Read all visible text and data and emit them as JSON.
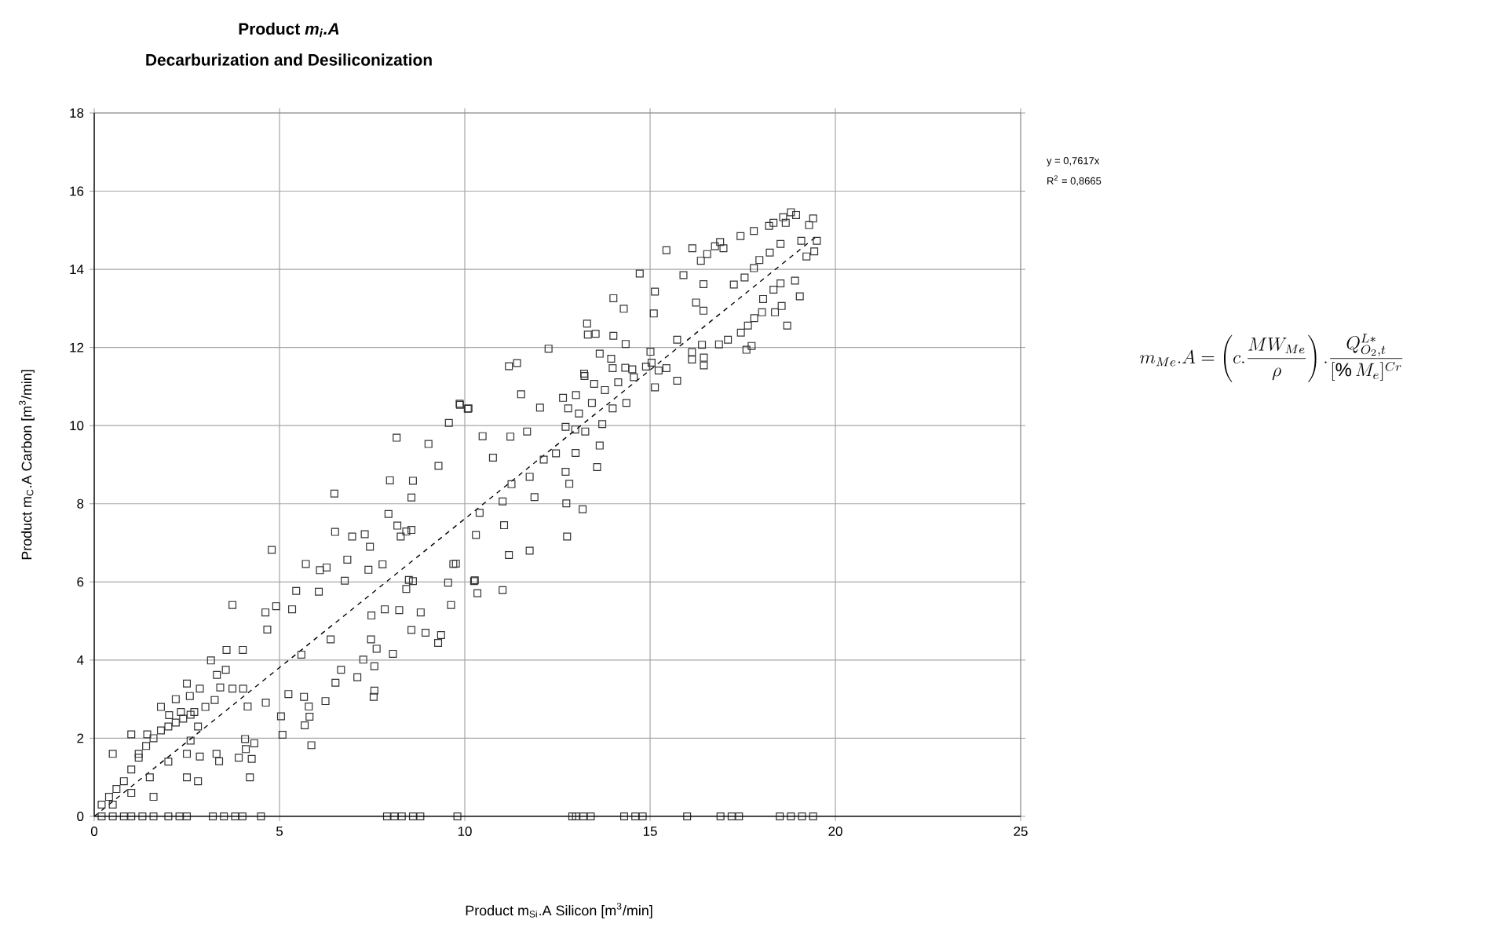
{
  "chart_data": {
    "type": "scatter",
    "title": "Product *m$_{i}$.A*",
    "subtitle": "Decarburization and Desiliconization",
    "xlabel": "Product m$_{Si}$.A Silicon [m$^{3}$/min]",
    "ylabel": "Product m$_{C}$.A Carbon [m$^{3}$/min]",
    "annotations": [
      "y = 0,7617x",
      "R$^{2}$ = 0,8665",
      "m_{Me}.A=\\left(c.\\frac{MW_{Me}}{\\rho}\\right).\\frac{Q_{O_2,t}^{L*}}{[\\%\\,M_e]^{Cr}}"
    ],
    "xlim": [
      0,
      25
    ],
    "ylim": [
      0,
      18
    ],
    "xticks": [
      0,
      5,
      10,
      15,
      20,
      25
    ],
    "yticks": [
      0,
      2,
      4,
      6,
      8,
      10,
      12,
      14,
      16,
      18
    ],
    "grid": true,
    "series": [
      {
        "color": "#333333",
        "marker": "square",
        "x": [
          0.2,
          0.5,
          0.8,
          1.0,
          1.3,
          1.6,
          2.0,
          2.3,
          2.5,
          3.2,
          3.5,
          3.8,
          4.0,
          4.5,
          7.9,
          8.1,
          8.3,
          8.6,
          8.8,
          9.8,
          12.9,
          13.0,
          13.2,
          13.4,
          14.3,
          14.6,
          14.8,
          16.0,
          16.9,
          17.2,
          17.4,
          18.5,
          18.8,
          19.1,
          19.4,
          0.2,
          0.4,
          0.6,
          0.8,
          1.0,
          1.2,
          1.4,
          1.6,
          1.8,
          2.0,
          2.2,
          2.4,
          2.6,
          0.5,
          1.0,
          1.5,
          2.0,
          2.5,
          0.5,
          1.0,
          1.8,
          2.2,
          2.5,
          3.4,
          3.0,
          2.8,
          3.3,
          2.5,
          1.6,
          2.8,
          3.9,
          4.2,
          9.86,
          10.1,
          9.57,
          8.16,
          9.02,
          9.29,
          7.98,
          8.6,
          8.56,
          6.48,
          7.94,
          8.18,
          8.27,
          8.42,
          8.56,
          6.5,
          6.96,
          7.3,
          7.44,
          4.79,
          6.83,
          7.78,
          5.71,
          6.27,
          6.09,
          7.4,
          6.76,
          6.06,
          5.45,
          9.55,
          9.69,
          10.25,
          8.49,
          8.6,
          8.42,
          3.73,
          4.62,
          4.91,
          5.34,
          4.67,
          6.38,
          5.59,
          7.48,
          7.84,
          8.23,
          8.81,
          8.56,
          8.94,
          9.36,
          9.28,
          9.63,
          7.47,
          7.62,
          8.06,
          7.26,
          7.56,
          7.1,
          6.66,
          6.51,
          7.56,
          7.54,
          3.57,
          4.01,
          3.15,
          3.55,
          3.31,
          2.85,
          2.58,
          2.02,
          3.25,
          3.73,
          4.02,
          4.14,
          4.63,
          5.24,
          5.66,
          5.79,
          5.81,
          6.24,
          5.04,
          5.08,
          5.68,
          5.86,
          4.07,
          4.32,
          4.09,
          4.25,
          1.43,
          1.2,
          3.37,
          2.85,
          2.6,
          2.7,
          2.34,
          15.44,
          16.14,
          16.37,
          16.54,
          16.75,
          16.89,
          16.98,
          17.44,
          17.8,
          18.21,
          18.33,
          18.59,
          18.8,
          18.66,
          18.94,
          19.4,
          19.29,
          19.5,
          19.43,
          19.22,
          19.08,
          14.72,
          15.9,
          16.44,
          17.26,
          17.55,
          17.8,
          17.95,
          18.23,
          18.52,
          15.13,
          14.01,
          14.29,
          15.1,
          16.24,
          16.44,
          13.3,
          13.32,
          13.53,
          14.01,
          14.34,
          12.26,
          15.73,
          16.4,
          16.86,
          17.1,
          17.45,
          17.64,
          17.81,
          18.02,
          18.05,
          18.33,
          18.52,
          18.91,
          19.04,
          18.7,
          18.37,
          18.55,
          17.6,
          17.74,
          11.19,
          11.41,
          11.52,
          12.03,
          13.22,
          13.23,
          13.49,
          13.64,
          13.95,
          13.99,
          14.33,
          14.52,
          14.56,
          15.01,
          15.04,
          15.13,
          14.89,
          15.23,
          15.44,
          15.73,
          16.13,
          16.13,
          16.45,
          16.45,
          12.65,
          13.0,
          12.79,
          13.08,
          13.43,
          13.78,
          14.14,
          12.72,
          12.98,
          13.25,
          13.71,
          13.99,
          14.36,
          9.87,
          10.08,
          10.48,
          11.23,
          11.68,
          10.76,
          12.13,
          12.46,
          12.99,
          13.64,
          13.57,
          12.72,
          12.82,
          11.75,
          11.26,
          11.88,
          11.02,
          10.4,
          12.74,
          13.18,
          10.3,
          11.06,
          11.19,
          11.75,
          12.76,
          10.27,
          10.34,
          11.02,
          9.76
        ],
        "values": [
          0,
          0,
          0,
          0,
          0,
          0,
          0,
          0,
          0,
          0,
          0,
          0,
          0,
          0,
          0,
          0,
          0,
          0,
          0,
          0,
          0,
          0,
          0,
          0,
          0,
          0,
          0,
          0,
          0,
          0,
          0,
          0,
          0,
          0,
          0,
          0.3,
          0.5,
          0.7,
          0.9,
          1.2,
          1.5,
          1.8,
          2.0,
          2.2,
          2.3,
          2.4,
          2.5,
          2.6,
          0.3,
          0.6,
          1.0,
          1.4,
          1.6,
          1.6,
          2.1,
          2.8,
          3.0,
          3.4,
          3.3,
          2.8,
          2.3,
          1.6,
          1.0,
          0.5,
          0.9,
          1.5,
          1.0,
          10.56,
          10.44,
          10.07,
          9.69,
          9.53,
          8.97,
          8.6,
          8.59,
          8.16,
          8.26,
          7.74,
          7.44,
          7.16,
          7.29,
          7.33,
          7.28,
          7.16,
          7.22,
          6.9,
          6.82,
          6.57,
          6.45,
          6.46,
          6.37,
          6.3,
          6.31,
          6.03,
          5.75,
          5.77,
          5.98,
          6.46,
          6.02,
          6.05,
          6.02,
          5.82,
          5.41,
          5.22,
          5.38,
          5.3,
          4.78,
          4.53,
          4.14,
          5.14,
          5.3,
          5.28,
          5.22,
          4.77,
          4.7,
          4.64,
          4.44,
          5.41,
          4.53,
          4.29,
          4.16,
          4.01,
          3.84,
          3.56,
          3.75,
          3.42,
          3.22,
          3.06,
          4.26,
          4.26,
          3.99,
          3.75,
          3.62,
          3.27,
          3.08,
          2.59,
          2.98,
          3.27,
          3.27,
          2.81,
          2.91,
          3.13,
          3.06,
          2.81,
          2.55,
          2.95,
          2.56,
          2.09,
          2.33,
          1.82,
          1.98,
          1.87,
          1.72,
          1.47,
          2.1,
          1.6,
          1.41,
          1.53,
          1.94,
          2.67,
          2.67,
          14.49,
          14.54,
          14.22,
          14.39,
          14.59,
          14.7,
          14.54,
          14.85,
          14.98,
          15.11,
          15.19,
          15.33,
          15.46,
          15.19,
          15.39,
          15.3,
          15.13,
          14.73,
          14.46,
          14.33,
          14.73,
          13.89,
          13.85,
          13.62,
          13.61,
          13.79,
          14.03,
          14.24,
          14.43,
          14.65,
          13.43,
          13.26,
          12.99,
          12.87,
          13.15,
          12.94,
          12.61,
          12.33,
          12.35,
          12.3,
          12.09,
          11.97,
          12.2,
          12.07,
          12.08,
          12.2,
          12.38,
          12.56,
          12.75,
          12.9,
          13.24,
          13.48,
          13.64,
          13.71,
          13.31,
          12.56,
          12.9,
          13.06,
          11.94,
          12.04,
          11.52,
          11.6,
          10.8,
          10.46,
          11.33,
          11.27,
          11.07,
          11.84,
          11.71,
          11.47,
          11.48,
          11.44,
          11.24,
          11.89,
          11.61,
          10.98,
          11.51,
          11.41,
          11.47,
          11.15,
          11.88,
          11.69,
          11.74,
          11.54,
          10.71,
          10.78,
          10.44,
          10.31,
          10.58,
          10.91,
          11.11,
          9.97,
          9.9,
          9.85,
          10.04,
          10.44,
          10.58,
          10.53,
          10.43,
          9.73,
          9.72,
          9.85,
          9.18,
          9.13,
          9.29,
          9.3,
          9.49,
          8.94,
          8.82,
          8.51,
          8.69,
          8.5,
          8.17,
          8.06,
          7.77,
          8.01,
          7.86,
          7.2,
          7.45,
          6.69,
          6.8,
          7.16,
          6.04,
          5.71,
          5.79,
          6.47
        ]
      },
      {
        "type": "line",
        "color": "#000000",
        "line_style": "dashed",
        "marker": "none",
        "x": [
          0,
          19.5
        ],
        "values": [
          0,
          14.85
        ]
      }
    ]
  }
}
